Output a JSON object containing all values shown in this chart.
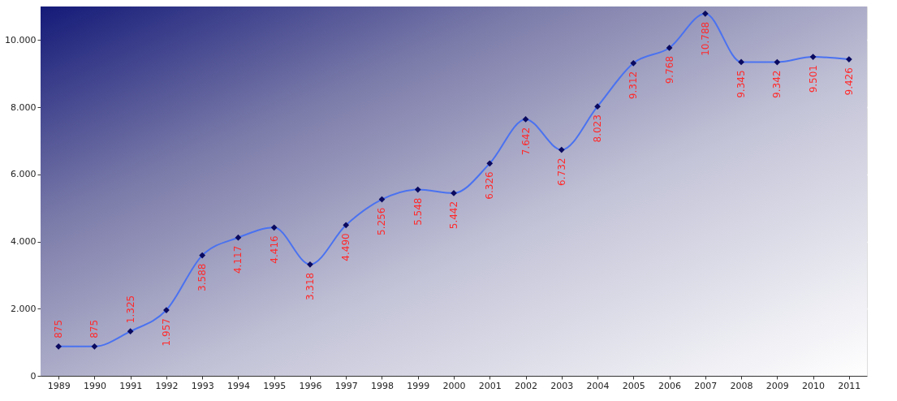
{
  "chart_data": {
    "type": "line",
    "categories": [
      "1989",
      "1990",
      "1991",
      "1992",
      "1993",
      "1994",
      "1995",
      "1996",
      "1997",
      "1998",
      "1999",
      "2000",
      "2001",
      "2002",
      "2003",
      "2004",
      "2005",
      "2006",
      "2007",
      "2008",
      "2009",
      "2010",
      "2011"
    ],
    "series": [
      {
        "color": "#4a72f0",
        "values": [
          875,
          875,
          1325,
          1957,
          3588,
          4117,
          4416,
          3318,
          4490,
          5256,
          5548,
          5442,
          6326,
          7642,
          6732,
          8023,
          9312,
          9768,
          10788,
          9345,
          9342,
          9501,
          9426
        ]
      }
    ],
    "value_labels": [
      "875",
      "875",
      "1.325",
      "1.957",
      "3.588",
      "4.117",
      "4.416",
      "3.318",
      "4.490",
      "5.256",
      "5.548",
      "5.442",
      "6.326",
      "7.642",
      "6.732",
      "8.023",
      "9.312",
      "9.768",
      "10.788",
      "9.345",
      "9.342",
      "9.501",
      "9.426"
    ],
    "ylim": [
      0,
      11000
    ],
    "yticks": [
      0,
      {
        "value": 2000,
        "label": "2.000"
      },
      {
        "value": 4000,
        "label": "4.000"
      },
      {
        "value": 6000,
        "label": "6.000"
      },
      {
        "value": 8000,
        "label": "8.000"
      },
      {
        "value": 10000,
        "label": "10.000"
      }
    ],
    "grid": "y",
    "marker": "diamond",
    "line_style": "solid"
  }
}
